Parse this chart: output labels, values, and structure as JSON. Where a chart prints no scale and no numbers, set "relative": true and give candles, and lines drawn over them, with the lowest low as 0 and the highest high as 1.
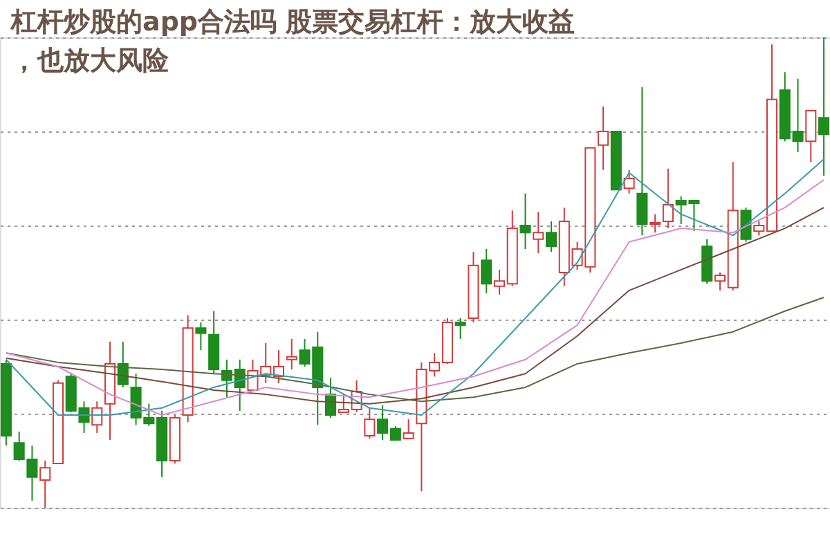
{
  "chart_data": {
    "type": "candlestick",
    "relative": true,
    "title": "杠杆炒股的app合法吗 股票交易杠杆：放大收益，也放大风险",
    "grid": "y",
    "categories": [
      null,
      null,
      null,
      null,
      null,
      null,
      null,
      null,
      null,
      null,
      null,
      null,
      null,
      null,
      null,
      null,
      null,
      null,
      null,
      null,
      null,
      null,
      null,
      null,
      null,
      null,
      null,
      null,
      null,
      null,
      null,
      null,
      null,
      null,
      null,
      null,
      null,
      null,
      null,
      null,
      null,
      null,
      null,
      null,
      null,
      null,
      null,
      null,
      null,
      null,
      null,
      null,
      null,
      null,
      null,
      null,
      null,
      null,
      null,
      null,
      null,
      null,
      null,
      null
    ],
    "ohlc": [
      [
        0.306,
        0.315,
        0.132,
        0.153
      ],
      [
        0.138,
        0.162,
        0.1,
        0.103
      ],
      [
        0.103,
        0.132,
        0.015,
        0.065
      ],
      [
        0.059,
        0.1,
        0,
        0.085
      ],
      [
        0.094,
        0.271,
        0.094,
        0.265
      ],
      [
        0.279,
        0.285,
        0.203,
        0.206
      ],
      [
        0.212,
        0.226,
        0.159,
        0.182
      ],
      [
        0.176,
        0.226,
        0.159,
        0.212
      ],
      [
        0.221,
        0.353,
        0.144,
        0.306
      ],
      [
        0.306,
        0.353,
        0.256,
        0.262
      ],
      [
        0.256,
        0.285,
        0.176,
        0.191
      ],
      [
        0.191,
        0.221,
        0.174,
        0.179
      ],
      [
        0.191,
        0.206,
        0.065,
        0.1
      ],
      [
        0.1,
        0.197,
        0.094,
        0.191
      ],
      [
        0.197,
        0.409,
        0.182,
        0.382
      ],
      [
        0.382,
        0.394,
        0.335,
        0.371
      ],
      [
        0.368,
        0.418,
        0.285,
        0.294
      ],
      [
        0.291,
        0.315,
        0.235,
        0.271
      ],
      [
        0.294,
        0.315,
        0.206,
        0.256
      ],
      [
        0.25,
        0.315,
        0.247,
        0.291
      ],
      [
        0.282,
        0.35,
        0.265,
        0.3
      ],
      [
        0.279,
        0.335,
        0.265,
        0.3
      ],
      [
        0.315,
        0.359,
        0.294,
        0.321
      ],
      [
        0.335,
        0.359,
        0.3,
        0.306
      ],
      [
        0.341,
        0.374,
        0.176,
        0.256
      ],
      [
        0.241,
        0.276,
        0.191,
        0.197
      ],
      [
        0.203,
        0.241,
        0.203,
        0.209
      ],
      [
        0.209,
        0.271,
        0.203,
        0.247
      ],
      [
        0.153,
        0.212,
        0.147,
        0.188
      ],
      [
        0.188,
        0.218,
        0.144,
        0.159
      ],
      [
        0.168,
        0.174,
        0.144,
        0.144
      ],
      [
        0.147,
        0.188,
        0.147,
        0.159
      ],
      [
        0.179,
        0.309,
        0.035,
        0.294
      ],
      [
        0.291,
        0.329,
        0.279,
        0.309
      ],
      [
        0.309,
        0.403,
        0.306,
        0.394
      ],
      [
        0.394,
        0.403,
        0.359,
        0.388
      ],
      [
        0.403,
        0.544,
        0.394,
        0.515
      ],
      [
        0.526,
        0.55,
        0.456,
        0.476
      ],
      [
        0.471,
        0.506,
        0.453,
        0.482
      ],
      [
        0.476,
        0.632,
        0.471,
        0.594
      ],
      [
        0.6,
        0.668,
        0.55,
        0.585
      ],
      [
        0.571,
        0.629,
        0.541,
        0.585
      ],
      [
        0.585,
        0.609,
        0.544,
        0.556
      ],
      [
        0.5,
        0.638,
        0.471,
        0.609
      ],
      [
        0.515,
        0.565,
        0.506,
        0.55
      ],
      [
        0.512,
        0.765,
        0.5,
        0.765
      ],
      [
        0.771,
        0.853,
        0.718,
        0.8
      ],
      [
        0.8,
        0.8,
        0.676,
        0.676
      ],
      [
        0.679,
        0.718,
        0.668,
        0.7
      ],
      [
        0.668,
        0.894,
        0.579,
        0.603
      ],
      [
        0.603,
        0.624,
        0.585,
        0.606
      ],
      [
        0.609,
        0.721,
        0.594,
        0.644
      ],
      [
        0.653,
        0.662,
        0.603,
        0.644
      ],
      [
        0.653,
        0.653,
        0.588,
        0.647
      ],
      [
        0.556,
        0.571,
        0.476,
        0.482
      ],
      [
        0.482,
        0.5,
        0.462,
        0.494
      ],
      [
        0.468,
        0.735,
        0.462,
        0.632
      ],
      [
        0.632,
        0.638,
        0.565,
        0.571
      ],
      [
        0.588,
        0.609,
        0.579,
        0.6
      ],
      [
        0.588,
        0.985,
        0.588,
        0.868
      ],
      [
        0.888,
        0.926,
        0.779,
        0.785
      ],
      [
        0.8,
        0.912,
        0.756,
        0.779
      ],
      [
        0.779,
        0.844,
        0.735,
        0.844
      ],
      [
        0.829,
        1,
        0.706,
        0.794
      ]
    ],
    "colors": [
      "#1e8c1e",
      "#1e8c1e",
      "#1e8c1e",
      "#d23c3c",
      "#d23c3c",
      "#1e8c1e",
      "#1e8c1e",
      "#d23c3c",
      "#d23c3c",
      "#1e8c1e",
      "#1e8c1e",
      "#1e8c1e",
      "#1e8c1e",
      "#d23c3c",
      "#d23c3c",
      "#1e8c1e",
      "#1e8c1e",
      "#1e8c1e",
      "#1e8c1e",
      "#d23c3c",
      "#d23c3c",
      "#d23c3c",
      "#d23c3c",
      "#1e8c1e",
      "#1e8c1e",
      "#1e8c1e",
      "#d23c3c",
      "#d23c3c",
      "#d23c3c",
      "#1e8c1e",
      "#1e8c1e",
      "#d23c3c",
      "#d23c3c",
      "#d23c3c",
      "#d23c3c",
      "#1e8c1e",
      "#d23c3c",
      "#1e8c1e",
      "#d23c3c",
      "#d23c3c",
      "#1e8c1e",
      "#d23c3c",
      "#1e8c1e",
      "#d23c3c",
      "#d23c3c",
      "#d23c3c",
      "#d23c3c",
      "#1e8c1e",
      "#d23c3c",
      "#1e8c1e",
      "#d23c3c",
      "#d23c3c",
      "#1e8c1e",
      "#1e8c1e",
      "#1e8c1e",
      "#d23c3c",
      "#d23c3c",
      "#1e8c1e",
      "#d23c3c",
      "#d23c3c",
      "#1e8c1e",
      "#1e8c1e",
      "#d23c3c",
      "#1e8c1e"
    ],
    "series": [
      {
        "type": "line",
        "color": "#5a6a40",
        "values": [
          0.329,
          null,
          null,
          null,
          0.309,
          null,
          null,
          null,
          0.3,
          null,
          null,
          null,
          0.294,
          null,
          null,
          null,
          0.285,
          null,
          null,
          null,
          0.279,
          null,
          null,
          null,
          0.262,
          null,
          null,
          null,
          0.241,
          null,
          null,
          null,
          0.226,
          null,
          null,
          null,
          0.235,
          null,
          null,
          null,
          0.256,
          null,
          null,
          null,
          0.306,
          null,
          null,
          null,
          0.329,
          null,
          null,
          null,
          0.35,
          null,
          null,
          null,
          0.374,
          null,
          null,
          null,
          0.418,
          null,
          null,
          0.447
        ]
      },
      {
        "type": "line",
        "color": "#7a4a3a",
        "values": [
          0.318,
          null,
          null,
          null,
          0.3,
          null,
          null,
          null,
          0.285,
          null,
          null,
          null,
          0.268,
          null,
          null,
          null,
          0.25,
          null,
          null,
          null,
          0.241,
          null,
          null,
          null,
          0.226,
          null,
          null,
          null,
          0.221,
          null,
          null,
          null,
          0.232,
          null,
          null,
          null,
          0.256,
          null,
          null,
          null,
          0.285,
          null,
          null,
          null,
          0.365,
          null,
          null,
          null,
          0.462,
          null,
          null,
          null,
          0.506,
          null,
          null,
          null,
          0.55,
          null,
          null,
          null,
          0.594,
          null,
          null,
          0.638
        ]
      },
      {
        "type": "line",
        "color": "#3a9ab0",
        "values": [
          0.315,
          null,
          null,
          null,
          0.197,
          null,
          null,
          null,
          0.197,
          null,
          null,
          null,
          0.212,
          null,
          null,
          null,
          0.256,
          null,
          null,
          null,
          0.285,
          null,
          null,
          null,
          0.271,
          null,
          null,
          null,
          0.212,
          null,
          null,
          null,
          0.197,
          null,
          null,
          null,
          0.285,
          null,
          null,
          null,
          0.403,
          null,
          null,
          null,
          0.521,
          null,
          null,
          null,
          0.712,
          null,
          null,
          null,
          0.624,
          null,
          null,
          null,
          0.579,
          null,
          null,
          null,
          0.668,
          null,
          null,
          0.741
        ]
      },
      {
        "type": "line",
        "color": "#d98ad0",
        "values": [
          0.329,
          null,
          null,
          null,
          0.3,
          null,
          null,
          null,
          0.241,
          null,
          null,
          null,
          0.197,
          null,
          null,
          null,
          0.226,
          null,
          null,
          null,
          0.256,
          null,
          null,
          null,
          0.241,
          null,
          null,
          null,
          0.235,
          null,
          null,
          null,
          0.256,
          null,
          null,
          null,
          0.279,
          null,
          null,
          null,
          0.315,
          null,
          null,
          null,
          0.388,
          null,
          null,
          null,
          0.565,
          null,
          null,
          null,
          0.594,
          null,
          null,
          null,
          0.585,
          null,
          null,
          null,
          0.638,
          null,
          null,
          0.697
        ]
      }
    ]
  }
}
